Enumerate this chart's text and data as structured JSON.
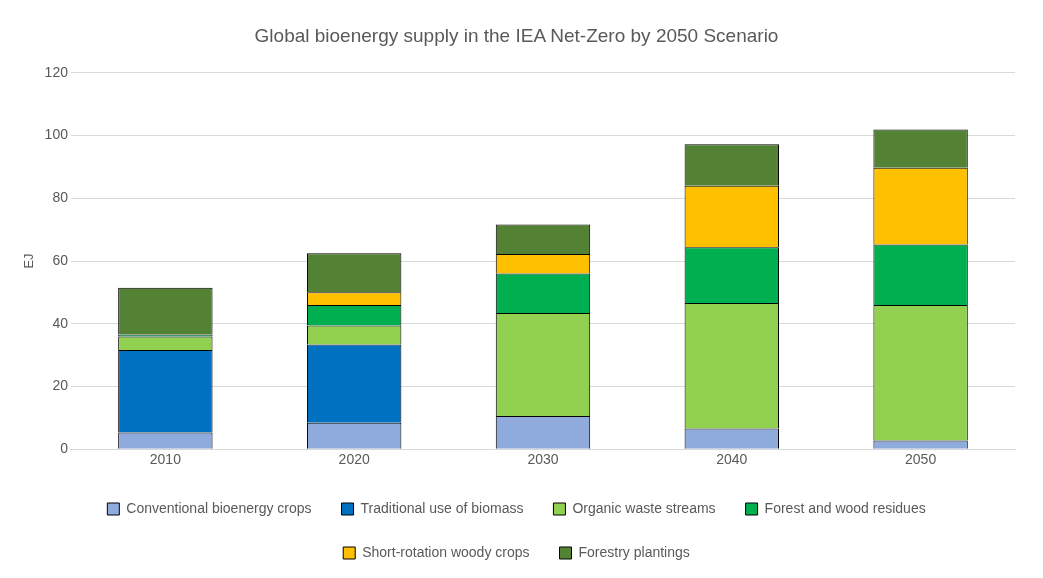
{
  "chart_data": {
    "type": "bar",
    "title": "Global bioenergy supply in the IEA Net-Zero by 2050 Scenario",
    "ylabel": "EJ",
    "categories": [
      "2010",
      "2020",
      "2030",
      "2040",
      "2050"
    ],
    "stacked": true,
    "ylim": [
      0,
      120
    ],
    "yticks": [
      0,
      20,
      40,
      60,
      80,
      100,
      120
    ],
    "grid": "y",
    "legend": "bottom",
    "series": [
      {
        "name": "Conventional bioenergy crops",
        "color": "#8faadc",
        "values": [
          5.3,
          8.4,
          10.6,
          6.6,
          2.8
        ]
      },
      {
        "name": "Traditional use of biomass",
        "color": "#0070c0",
        "values": [
          26.3,
          25,
          0,
          0,
          0
        ]
      },
      {
        "name": "Organic waste streams",
        "color": "#92d050",
        "values": [
          4.3,
          6,
          32.8,
          40,
          43.2
        ]
      },
      {
        "name": "Forest and wood residues",
        "color": "#00b050",
        "values": [
          0.7,
          6.6,
          12.6,
          17.8,
          19.3
        ]
      },
      {
        "name": "Short-rotation woody crops",
        "color": "#ffc000",
        "values": [
          0,
          4,
          6.2,
          19.6,
          24.4
        ]
      },
      {
        "name": "Forestry plantings",
        "color": "#548235",
        "values": [
          14.9,
          12.5,
          9.4,
          13.2,
          12.2
        ]
      }
    ]
  }
}
